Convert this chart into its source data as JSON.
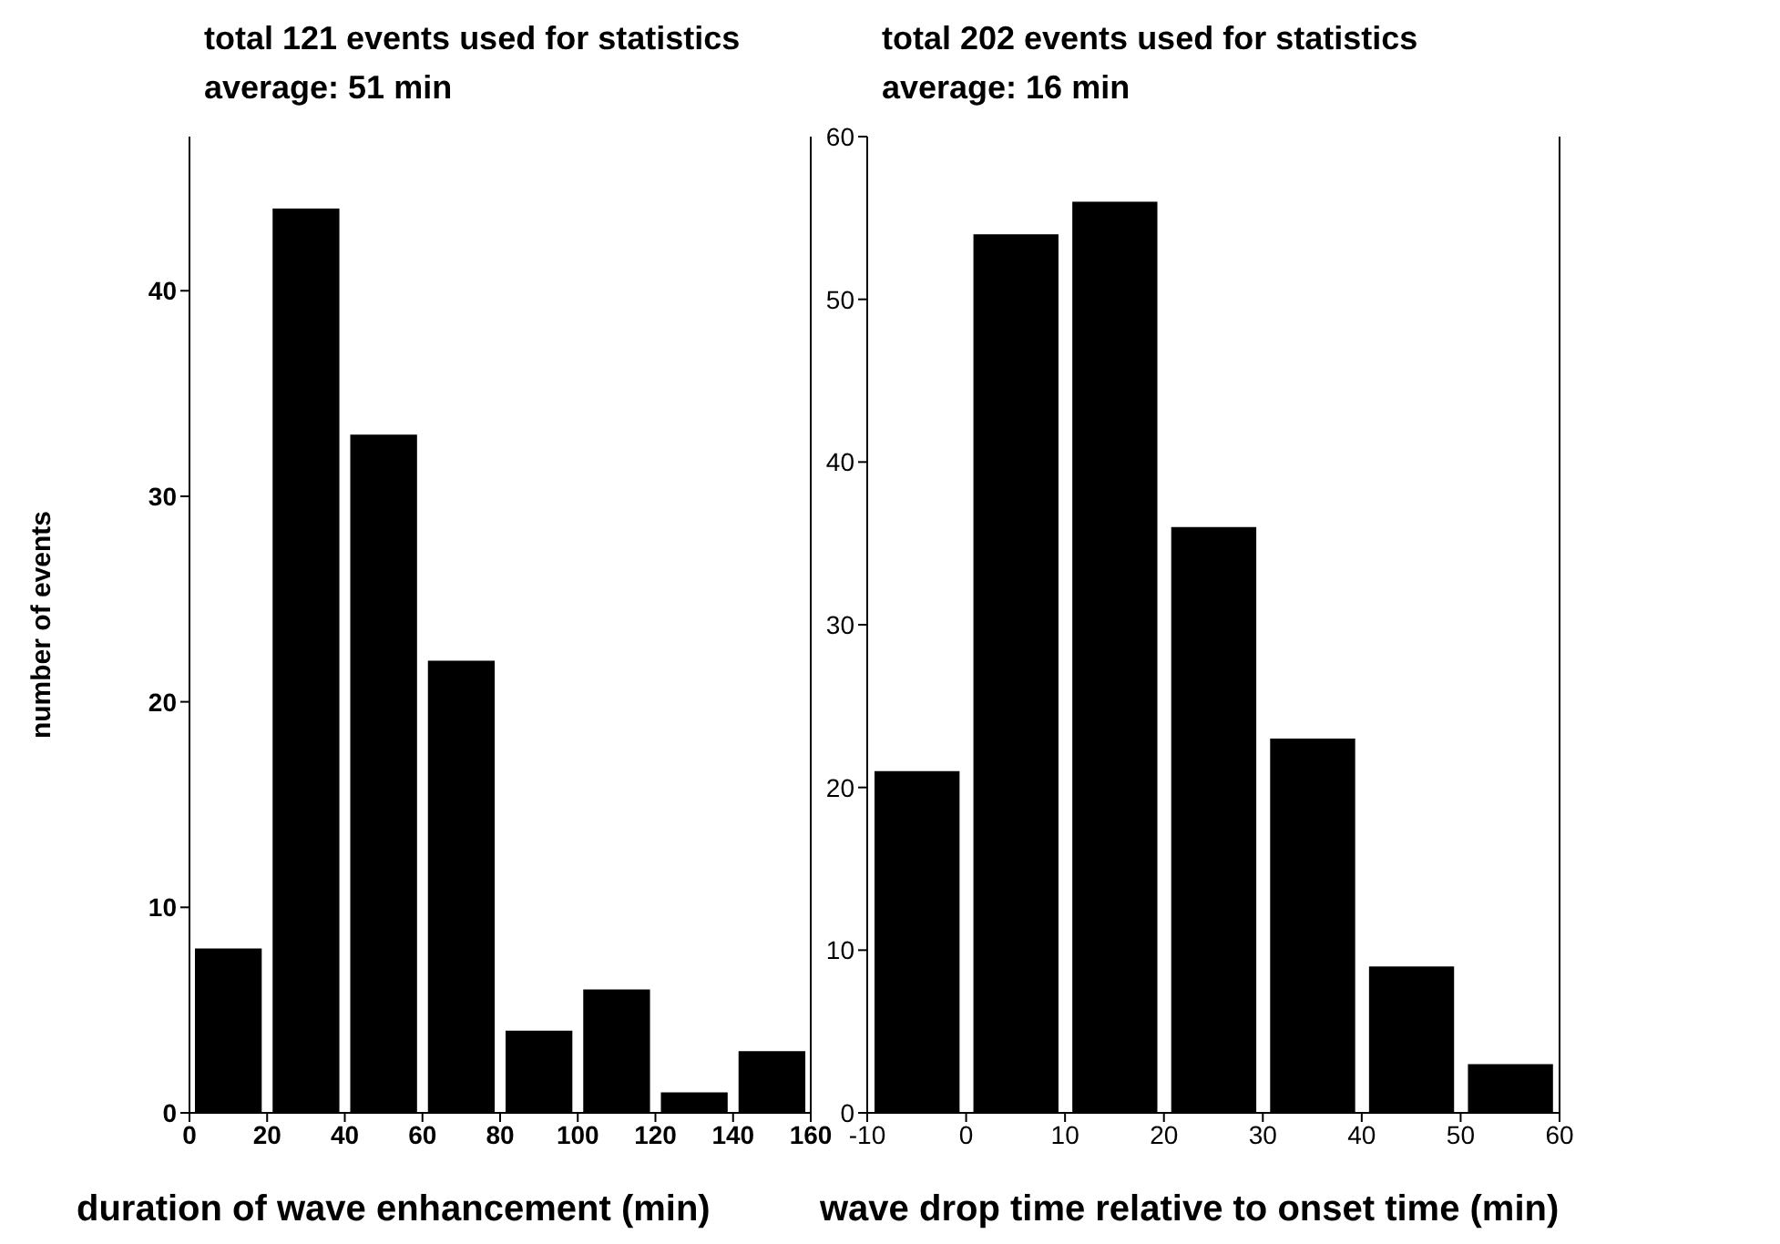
{
  "chart_data": [
    {
      "type": "histogram",
      "title": "total 121 events used for statistics",
      "subtitle": "average: 51 min",
      "xlabel": "duration of wave enhancement (min)",
      "ylabel": "number of events",
      "bins": [
        0,
        20,
        40,
        60,
        80,
        100,
        120,
        140,
        160
      ],
      "values": [
        8,
        44,
        33,
        22,
        4,
        6,
        1,
        3
      ],
      "color": "#000000",
      "xlim": [
        0,
        160
      ],
      "xticks": [
        0,
        20,
        40,
        60,
        80,
        100,
        120,
        140,
        160
      ],
      "ylim": [
        0,
        47.5
      ],
      "yticks": [
        0,
        10,
        20,
        30,
        40
      ]
    },
    {
      "type": "histogram",
      "title": "total 202 events used for statistics",
      "subtitle": "average: 16 min",
      "xlabel": "wave drop time relative to onset time (min)",
      "bins": [
        -10,
        0,
        10,
        20,
        30,
        40,
        50,
        60
      ],
      "values": [
        21,
        54,
        56,
        36,
        23,
        9,
        3
      ],
      "color": "#000000",
      "xlim": [
        -10,
        60
      ],
      "xticks": [
        -10,
        0,
        10,
        20,
        30,
        40,
        50,
        60
      ],
      "ylim": [
        0,
        60
      ],
      "yticks": [
        0,
        10,
        20,
        30,
        40,
        50,
        60
      ]
    }
  ]
}
